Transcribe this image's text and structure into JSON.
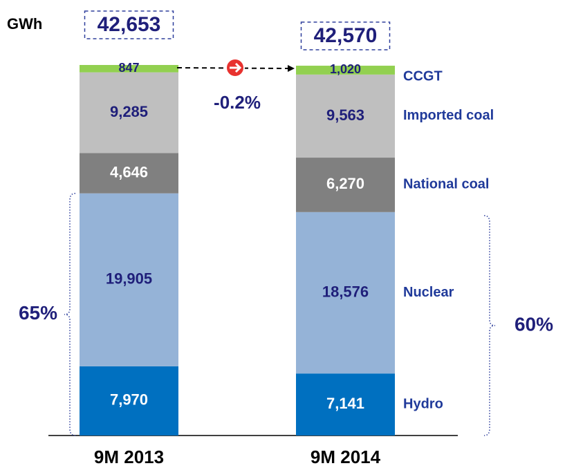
{
  "chart_data": {
    "type": "stacked_bar",
    "unit": "GWh",
    "categories": [
      "9M 2013",
      "9M 2014"
    ],
    "series": [
      {
        "name": "Hydro",
        "color": "#0070c0",
        "label_color": "#ffffff",
        "values": [
          7970,
          7141
        ],
        "value_labels": [
          "7,970",
          "7,141"
        ]
      },
      {
        "name": "Nuclear",
        "color": "#95b3d7",
        "label_color": "#1f1f7a",
        "values": [
          19905,
          18576
        ],
        "value_labels": [
          "19,905",
          "18,576"
        ]
      },
      {
        "name": "National coal",
        "color": "#808080",
        "label_color": "#ffffff",
        "values": [
          4646,
          6270
        ],
        "value_labels": [
          "4,646",
          "6,270"
        ]
      },
      {
        "name": "Imported coal",
        "color": "#bfbfbf",
        "label_color": "#1f1f7a",
        "values": [
          9285,
          9563
        ],
        "value_labels": [
          "9,285",
          "9,563"
        ]
      },
      {
        "name": "CCGT",
        "color": "#92d050",
        "label_color": "#1f1f7a",
        "values": [
          847,
          1020
        ],
        "value_labels": [
          "847",
          "1,020"
        ]
      }
    ],
    "totals": [
      42653,
      42570
    ],
    "total_labels": [
      "42,653",
      "42,570"
    ],
    "change": -0.2,
    "change_label": "-0.2%",
    "shares": [
      65,
      60
    ],
    "share_labels": [
      "65%",
      "60%"
    ]
  }
}
